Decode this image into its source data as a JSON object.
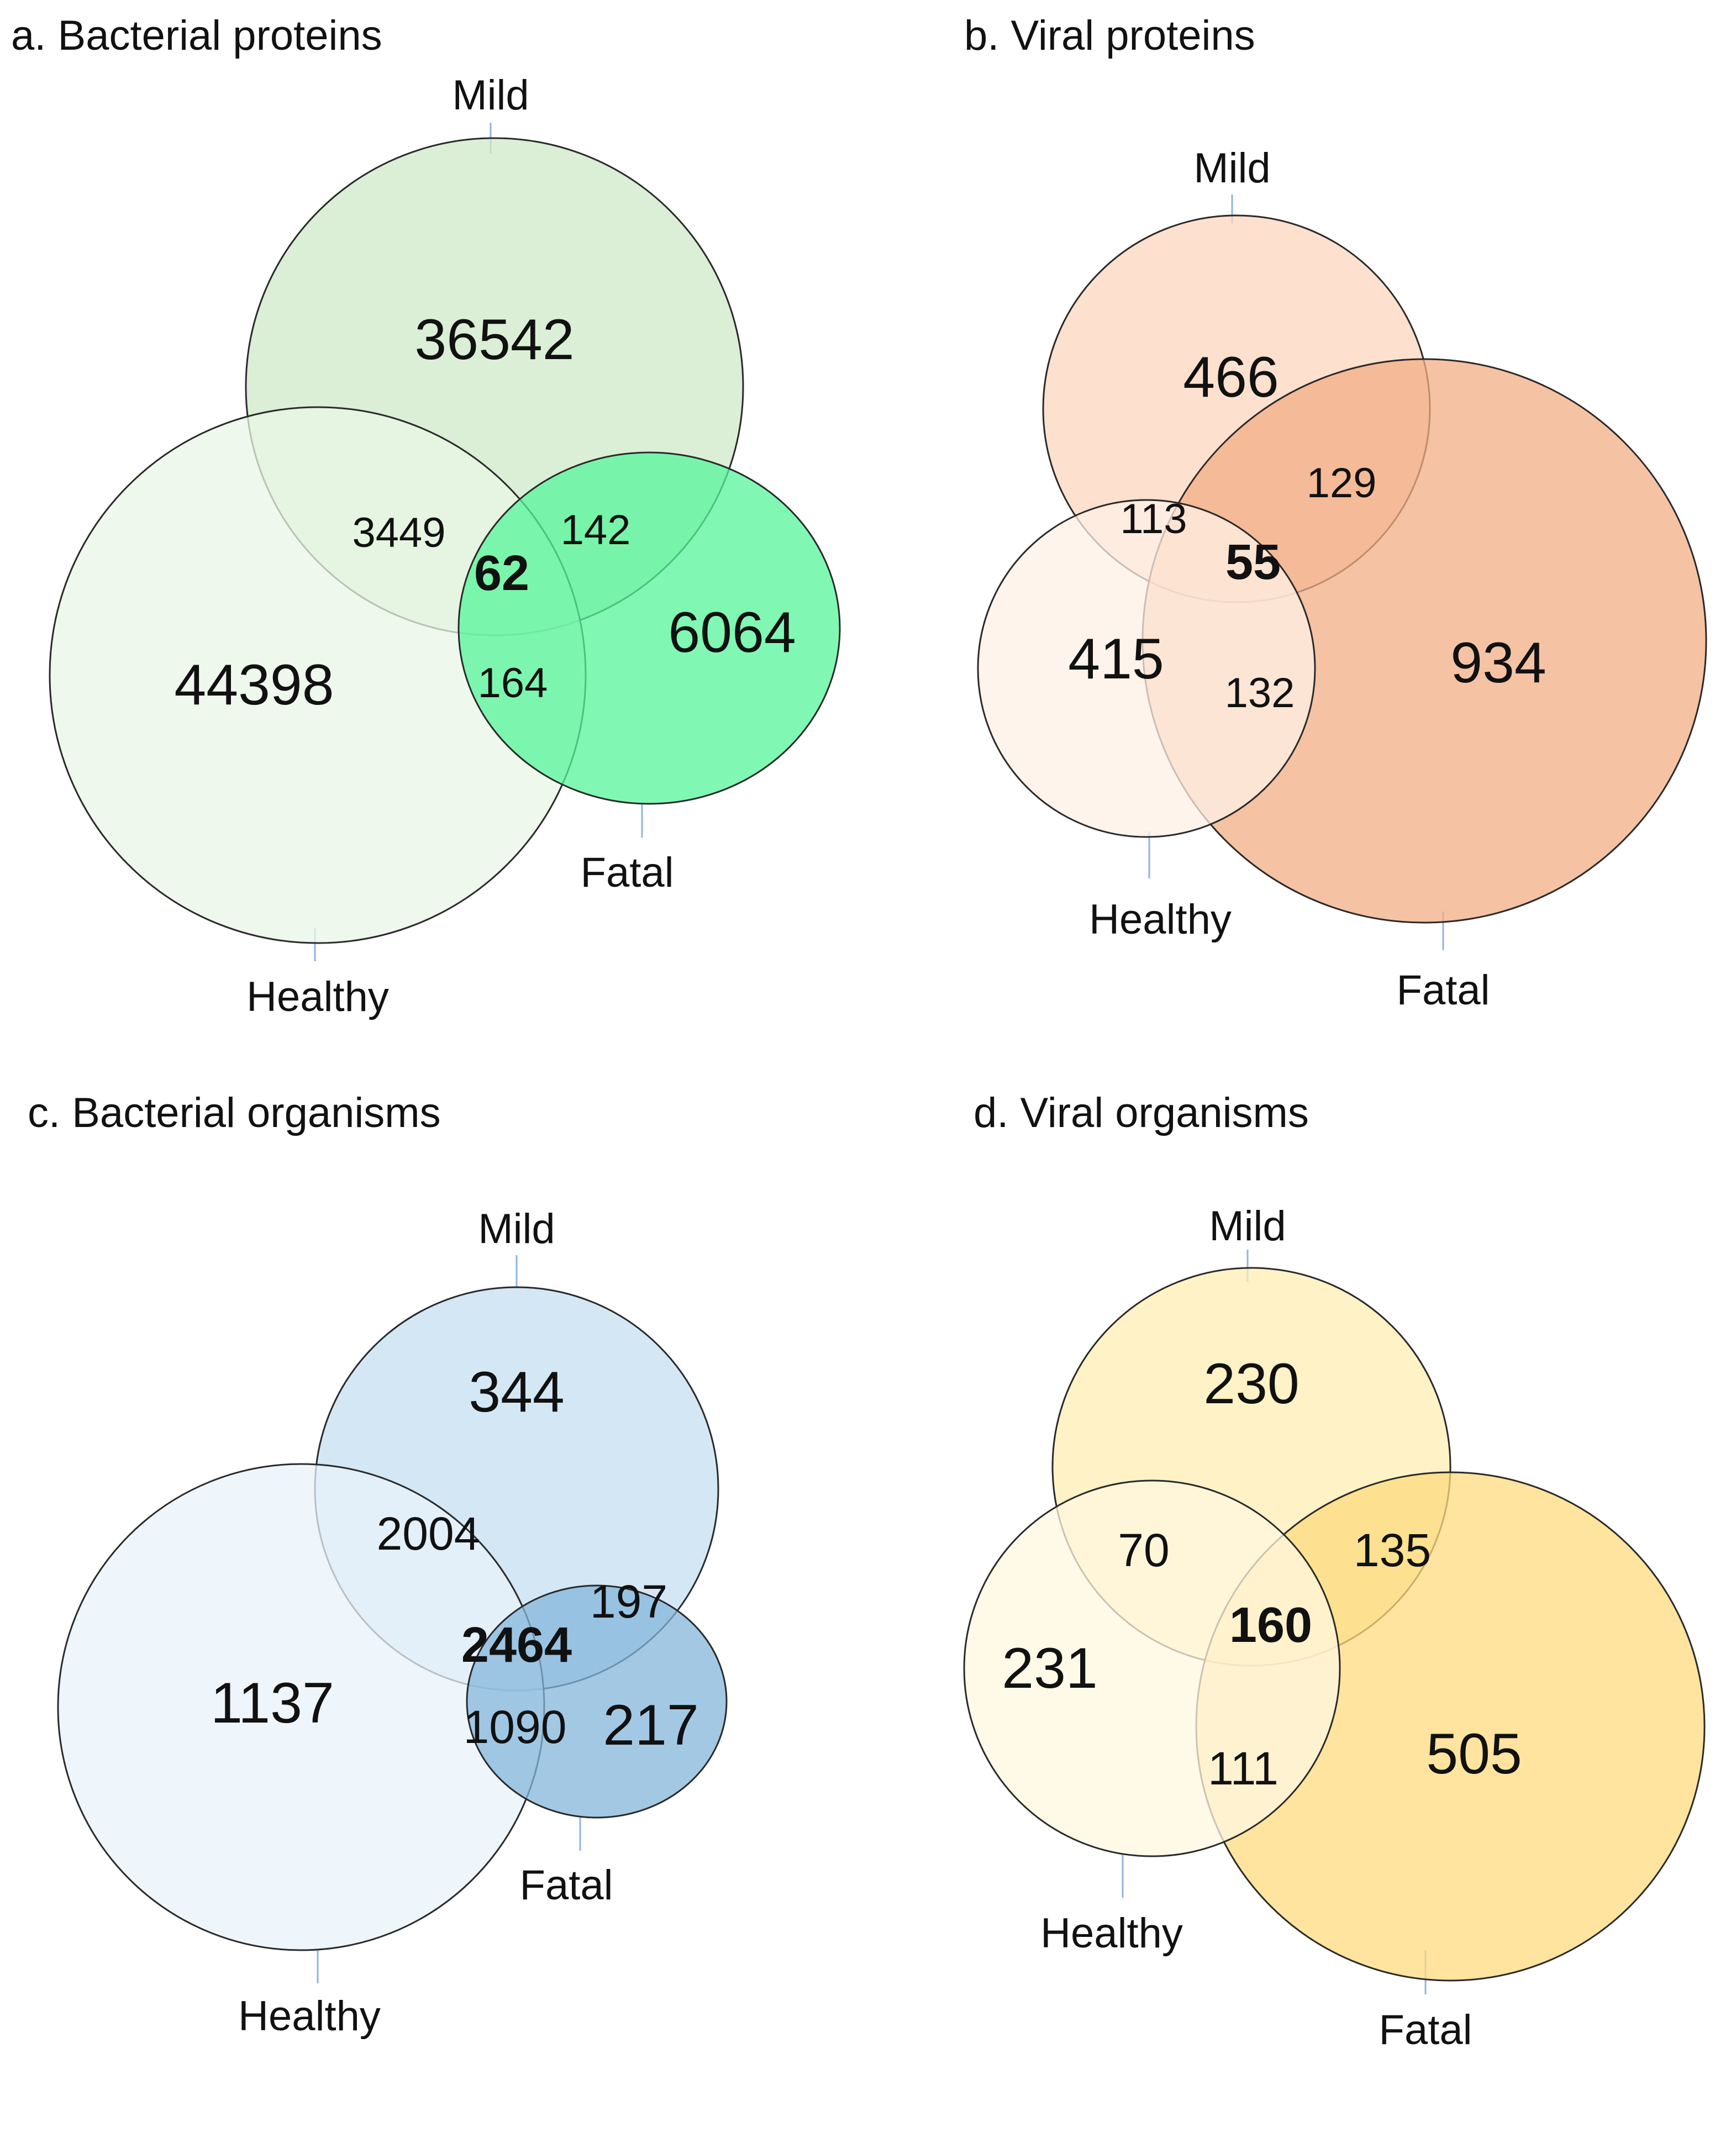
{
  "panels": {
    "a": {
      "title": "a. Bacterial proteins",
      "labels": {
        "mild": "Mild",
        "fatal": "Fatal",
        "healthy": "Healthy"
      },
      "regions": {
        "mild_only": "36542",
        "healthy_only": "44398",
        "fatal_only": "6064",
        "healthy_mild": "3449",
        "mild_fatal": "142",
        "healthy_fatal": "164",
        "all_three": "62"
      },
      "colors": {
        "mild": "#cfe8c8",
        "healthy": "#eaf5e6",
        "fatal": "#55f59a"
      }
    },
    "b": {
      "title": "b. Viral proteins",
      "labels": {
        "mild": "Mild",
        "fatal": "Fatal",
        "healthy": "Healthy"
      },
      "regions": {
        "mild_only": "466",
        "healthy_only": "415",
        "fatal_only": "934",
        "healthy_mild": "113",
        "mild_fatal": "129",
        "healthy_fatal": "132",
        "all_three": "55"
      },
      "colors": {
        "mild": "#fdd6bd",
        "healthy": "#fff0e6",
        "fatal": "#f2ae86"
      }
    },
    "c": {
      "title": "c. Bacterial organisms",
      "labels": {
        "mild": "Mild",
        "fatal": "Fatal",
        "healthy": "Healthy"
      },
      "regions": {
        "mild_only": "344",
        "healthy_only": "1137",
        "fatal_only": "217",
        "healthy_mild": "2004",
        "mild_fatal": "197",
        "healthy_fatal": "1090",
        "all_three": "2464"
      },
      "colors": {
        "mild": "#c6dff1",
        "healthy": "#e8f3fb",
        "fatal": "#84b6db"
      }
    },
    "d": {
      "title": "d. Viral organisms",
      "labels": {
        "mild": "Mild",
        "fatal": "Fatal",
        "healthy": "Healthy"
      },
      "regions": {
        "mild_only": "230",
        "healthy_only": "231",
        "fatal_only": "505",
        "healthy_mild": "70",
        "mild_fatal": "135",
        "healthy_fatal": "111",
        "all_three": "160"
      },
      "colors": {
        "mild": "#feedb3",
        "healthy": "#fff7e0",
        "fatal": "#fddb7d"
      }
    }
  }
}
